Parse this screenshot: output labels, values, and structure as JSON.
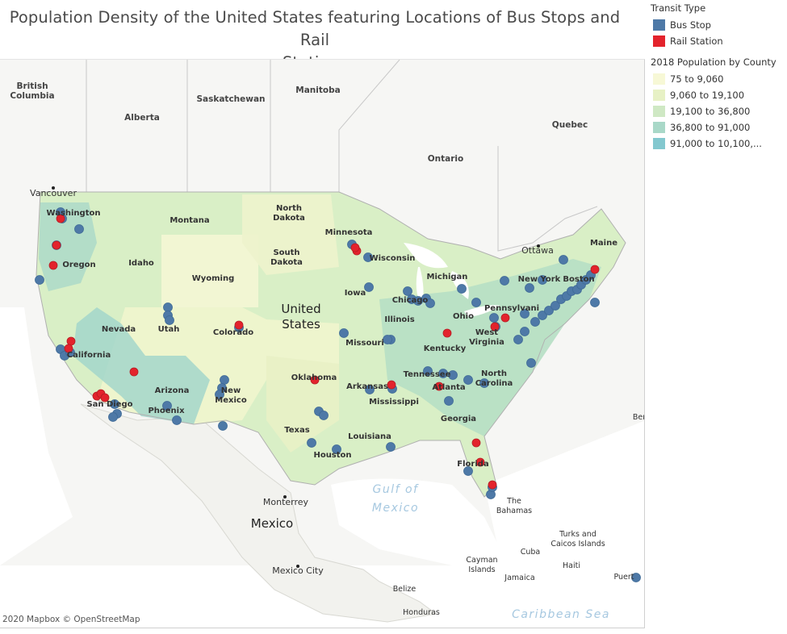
{
  "title": "Population Density of the United States featuring Locations of Bus Stops and Rail Stations",
  "legend": {
    "transit_title": "Transit Type",
    "transit_items": [
      {
        "label": "Bus Stop",
        "color": "#4e79a7"
      },
      {
        "label": "Rail Station",
        "color": "#e3232c"
      }
    ],
    "population_title": "2018 Population by County",
    "population_bins": [
      {
        "label": "75 to 9,060",
        "color": "#f7f8d6"
      },
      {
        "label": "9,060 to 19,100",
        "color": "#e7f1c5"
      },
      {
        "label": "19,100 to 36,800",
        "color": "#cfe8c4"
      },
      {
        "label": "36,800 to 91,000",
        "color": "#a9d8c8"
      },
      {
        "label": "91,000 to 10,100,...",
        "color": "#83c8cf"
      }
    ]
  },
  "map": {
    "labels": {
      "british_columbia": "British\nColumbia",
      "alberta": "Alberta",
      "saskatchewan": "Saskatchewan",
      "manitoba": "Manitoba",
      "ontario": "Ontario",
      "quebec": "Quebec",
      "united_states": "United\nStates",
      "mexico": "Mexico",
      "vancouver": "Vancouver",
      "ottawa": "Ottawa",
      "monterrey": "Monterrey",
      "mexico_city": "Mexico City",
      "gulf": "Gulf of\nMexico",
      "caribbean": "Caribbean Sea",
      "bahamas": "The\nBahamas",
      "turks": "Turks and\nCaicos Islands",
      "cuba": "Cuba",
      "cayman": "Cayman\nIslands",
      "haiti": "Haiti",
      "jamaica": "Jamaica",
      "belize": "Belize",
      "honduras": "Honduras",
      "puerto": "Puert",
      "bermuda": "Ber"
    },
    "states": [
      "Washington",
      "Montana",
      "North\nDakota",
      "Minnesota",
      "Oregon",
      "Idaho",
      "South\nDakota",
      "Wisconsin",
      "Wyoming",
      "Michigan",
      "Iowa",
      "New York",
      "Maine",
      "Nevada",
      "Utah",
      "Colorado",
      "Illinois",
      "Ohio",
      "Pennsylvani",
      "West\nVirginia",
      "Missouri",
      "Kentucky",
      "California",
      "Oklahoma",
      "Tennessee",
      "North\nCarolina",
      "Arizona",
      "New\nMexico",
      "Arkansas",
      "Mississippi",
      "Atlanta",
      "Georgia",
      "Texas",
      "Louisiana",
      "Houston",
      "Florida",
      "Phoenix",
      "Boston",
      "Chicago",
      "San Diego"
    ]
  },
  "attribution": "2020 Mapbox © OpenStreetMap"
}
